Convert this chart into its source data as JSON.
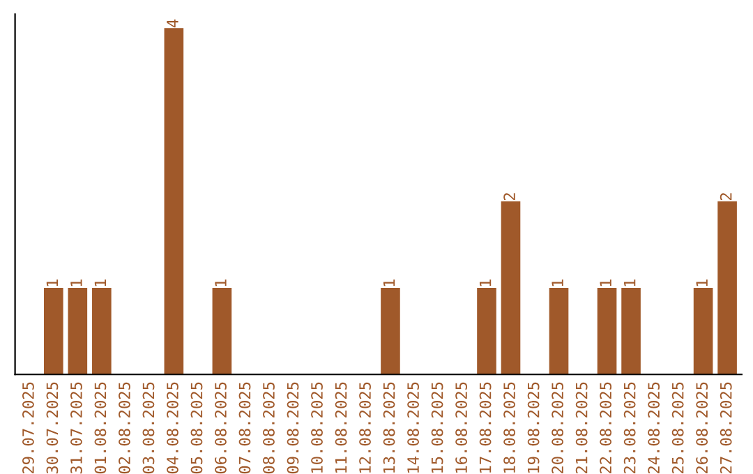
{
  "chart_data": {
    "type": "bar",
    "categories": [
      "29.07.2025",
      "30.07.2025",
      "31.07.2025",
      "01.08.2025",
      "02.08.2025",
      "03.08.2025",
      "04.08.2025",
      "05.08.2025",
      "06.08.2025",
      "07.08.2025",
      "08.08.2025",
      "09.08.2025",
      "10.08.2025",
      "11.08.2025",
      "12.08.2025",
      "13.08.2025",
      "14.08.2025",
      "15.08.2025",
      "16.08.2025",
      "17.08.2025",
      "18.08.2025",
      "19.08.2025",
      "20.08.2025",
      "21.08.2025",
      "22.08.2025",
      "23.08.2025",
      "24.08.2025",
      "25.08.2025",
      "26.08.2025",
      "27.08.2025"
    ],
    "values": [
      0,
      1,
      1,
      1,
      0,
      0,
      4,
      0,
      1,
      0,
      0,
      0,
      0,
      0,
      0,
      1,
      0,
      0,
      0,
      1,
      2,
      0,
      1,
      0,
      1,
      1,
      0,
      0,
      1,
      2
    ],
    "value_labels": [
      null,
      "1",
      "1",
      "1",
      null,
      null,
      "4",
      null,
      "1",
      null,
      null,
      null,
      null,
      null,
      null,
      "1",
      null,
      null,
      null,
      "1",
      "2",
      null,
      "1",
      null,
      "1",
      "1",
      null,
      null,
      "1",
      "2"
    ],
    "color": "#a0592a",
    "grid": false,
    "legend": false
  }
}
